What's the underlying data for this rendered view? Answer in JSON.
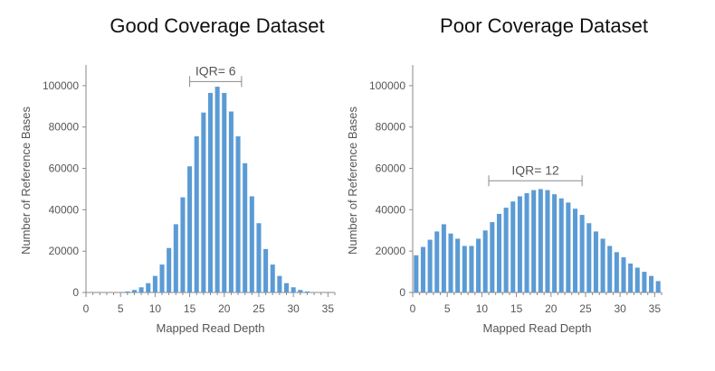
{
  "chart_data": [
    {
      "type": "bar",
      "title": "Good Coverage Dataset",
      "xlabel": "Mapped Read Depth",
      "ylabel": "Number of Reference Bases",
      "xlim": [
        0,
        36
      ],
      "ylim": [
        0,
        110000
      ],
      "xticks": [
        "0",
        "5",
        "10",
        "15",
        "20",
        "25",
        "30",
        "35"
      ],
      "yticks": [
        "0",
        "20000",
        "40000",
        "60000",
        "80000",
        "100000"
      ],
      "bar_color": "#5b9bd5",
      "grid": false,
      "annotation": {
        "label": "IQR= 6",
        "from": 15,
        "to": 22.5,
        "y": 102000
      },
      "x": [
        1,
        2,
        3,
        4,
        5,
        6,
        7,
        8,
        9,
        10,
        11,
        12,
        13,
        14,
        15,
        16,
        17,
        18,
        19,
        20,
        21,
        22,
        23,
        24,
        25,
        26,
        27,
        28,
        29,
        30,
        31,
        32,
        33,
        34,
        35
      ],
      "values": [
        0,
        0,
        0,
        0,
        0,
        500,
        1200,
        2500,
        4500,
        8000,
        13500,
        21500,
        33000,
        46000,
        61000,
        75500,
        87000,
        96500,
        99500,
        96500,
        87500,
        75500,
        62500,
        46500,
        33500,
        21000,
        13500,
        8000,
        4500,
        2500,
        1200,
        500,
        200,
        0,
        0
      ]
    },
    {
      "type": "bar",
      "title": "Poor Coverage Dataset",
      "xlabel": "Mapped Read Depth",
      "ylabel": "Number of Reference Bases",
      "xlim": [
        0,
        36
      ],
      "ylim": [
        0,
        110000
      ],
      "xticks": [
        "0",
        "5",
        "10",
        "15",
        "20",
        "25",
        "30",
        "35"
      ],
      "yticks": [
        "0",
        "20000",
        "40000",
        "60000",
        "80000",
        "100000"
      ],
      "bar_color": "#5b9bd5",
      "grid": false,
      "annotation": {
        "label": "IQR= 12",
        "from": 11,
        "to": 24.5,
        "y": 54000
      },
      "x": [
        0.5,
        1.5,
        2.5,
        3.5,
        4.5,
        5.5,
        6.5,
        7.5,
        8.5,
        9.5,
        10.5,
        11.5,
        12.5,
        13.5,
        14.5,
        15.5,
        16.5,
        17.5,
        18.5,
        19.5,
        20.5,
        21.5,
        22.5,
        23.5,
        24.5,
        25.5,
        26.5,
        27.5,
        28.5,
        29.5,
        30.5,
        31.5,
        32.5,
        33.5,
        34.5,
        35.5
      ],
      "values": [
        18000,
        22000,
        25500,
        29500,
        33000,
        28500,
        26000,
        22500,
        22500,
        26000,
        30000,
        34000,
        38000,
        41000,
        44000,
        46500,
        48000,
        49500,
        50000,
        49500,
        47500,
        45500,
        43500,
        40500,
        37500,
        33500,
        29500,
        26000,
        22500,
        19500,
        17000,
        14000,
        12000,
        10000,
        8000,
        5500
      ]
    }
  ]
}
